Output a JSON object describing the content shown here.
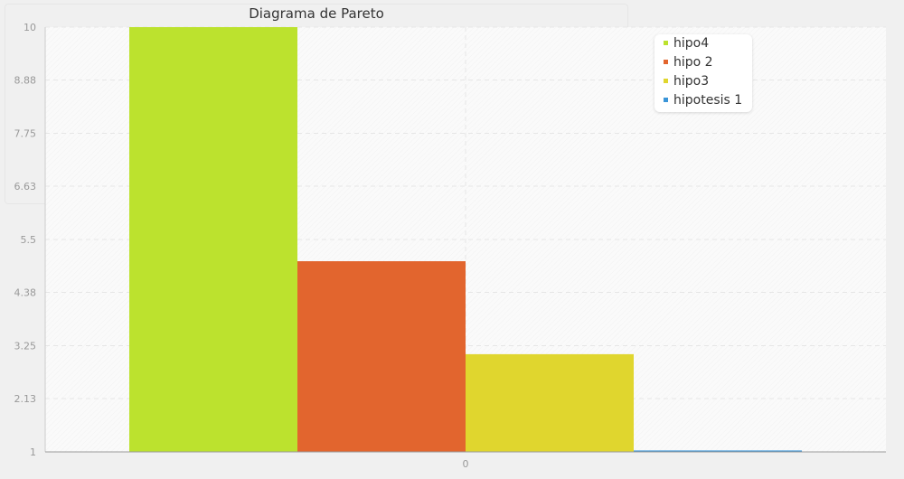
{
  "chart_data": {
    "type": "bar",
    "title": "Diagrama de Pareto",
    "categories": [
      "0"
    ],
    "series": [
      {
        "name": "hipo4",
        "values": [
          10
        ],
        "color": "#bce22e"
      },
      {
        "name": "hipo 2",
        "values": [
          5.04
        ],
        "color": "#e2652e"
      },
      {
        "name": "hipo3",
        "values": [
          3.07
        ],
        "color": "#e0d62e"
      },
      {
        "name": "hipotesis 1",
        "values": [
          1.03
        ],
        "color": "#3a95d8"
      }
    ],
    "ylim": [
      1,
      10
    ],
    "yticks": [
      "1",
      "2.13",
      "3.25",
      "4.38",
      "5.5",
      "6.63",
      "7.75",
      "8.88",
      "10"
    ],
    "xlabel": "",
    "ylabel": "",
    "grid": true,
    "legend_position": "top-right"
  }
}
